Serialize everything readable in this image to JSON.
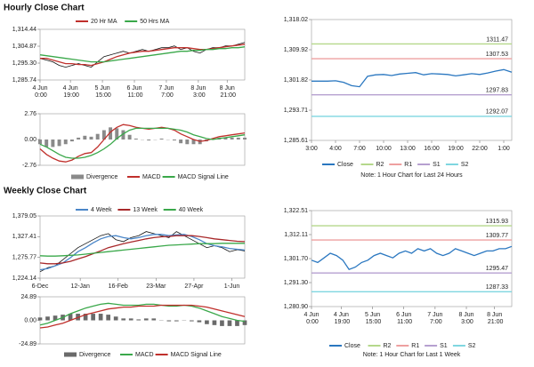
{
  "headings": [
    "Hourly Close Chart",
    "Weekly Close Chart"
  ],
  "chart_data": [
    {
      "type": "line",
      "ylim": [
        1285.74,
        1314.44
      ],
      "yticks": [
        {
          "value": 1314.44,
          "label": "1,314.44"
        },
        {
          "value": 1304.87,
          "label": "1,304.87"
        },
        {
          "value": 1295.3,
          "label": "1,295.30"
        },
        {
          "value": 1285.74,
          "label": "1,285.74"
        }
      ],
      "xlim": [
        0,
        32
      ],
      "xticks": [
        {
          "value": 0,
          "label": "4 Jun 0:00"
        },
        {
          "value": 4.75,
          "label": "4 Jun 19:00"
        },
        {
          "value": 9.75,
          "label": "5 Jun 15:00"
        },
        {
          "value": 14.75,
          "label": "6 Jun 11:00"
        },
        {
          "value": 19.75,
          "label": "7 Jun 7:00"
        },
        {
          "value": 24.75,
          "label": "8 Jun 3:00"
        },
        {
          "value": 29.25,
          "label": "8 Jun 21:00"
        }
      ],
      "series": [
        {
          "color": "#111111",
          "values": [
            1298,
            1297,
            1296,
            1294,
            1293,
            1294,
            1295,
            1294,
            1293,
            1296,
            1299,
            1300,
            1301,
            1302,
            1301,
            1302,
            1303,
            1302,
            1303,
            1304,
            1304,
            1305,
            1303,
            1304,
            1302,
            1301,
            1303,
            1304,
            1304,
            1305,
            1305,
            1306,
            1307
          ]
        },
        {
          "name": "20 Hr MA",
          "color": "#c0302c",
          "values": [
            1298,
            1298,
            1297,
            1296,
            1295,
            1295,
            1294.5,
            1294.5,
            1294,
            1295,
            1296,
            1297.5,
            1299,
            1300,
            1301,
            1301.5,
            1302,
            1302,
            1302.5,
            1303,
            1303.5,
            1304,
            1304,
            1304,
            1303.5,
            1303,
            1303,
            1303.5,
            1304,
            1304.5,
            1305,
            1305.5,
            1306
          ]
        },
        {
          "name": "50 Hrs MA",
          "color": "#3aa84a",
          "values": [
            1300,
            1299.5,
            1299,
            1298.5,
            1298,
            1297.5,
            1297,
            1296.5,
            1296,
            1296,
            1296,
            1296.5,
            1297,
            1297.5,
            1298,
            1298.5,
            1299,
            1299.5,
            1300,
            1300.5,
            1301,
            1301.5,
            1302,
            1302,
            1302.5,
            1302.5,
            1303,
            1303,
            1303.5,
            1303.5,
            1304,
            1304,
            1304.5
          ]
        }
      ]
    },
    {
      "type": "macd",
      "ylim": [
        -2.76,
        2.76
      ],
      "yticks": [
        2.76,
        {
          "value": 0,
          "label": "0.00"
        },
        -2.76
      ],
      "xlim": [
        0,
        32
      ],
      "series": [
        {
          "name": "Divergence",
          "type": "bar",
          "color": "#8a8a8a",
          "values": [
            -0.5,
            -0.8,
            -0.8,
            -0.7,
            -0.5,
            -0.2,
            0.2,
            0.4,
            0.3,
            0.6,
            1.0,
            1.3,
            1.2,
            1.0,
            0.5,
            0.1,
            0.0,
            -0.1,
            0.0,
            0.1,
            0.0,
            -0.1,
            -0.4,
            -0.5,
            -0.5,
            -0.5,
            -0.2,
            0.1,
            0.2,
            0.2,
            0.2,
            0.2,
            0.2
          ]
        },
        {
          "name": "MACD",
          "color": "#c0302c",
          "values": [
            -1.0,
            -1.6,
            -2.0,
            -2.3,
            -2.4,
            -2.2,
            -1.8,
            -1.5,
            -1.4,
            -0.8,
            0.0,
            0.8,
            1.3,
            1.6,
            1.5,
            1.3,
            1.2,
            1.1,
            1.2,
            1.3,
            1.2,
            1.0,
            0.6,
            0.3,
            0.0,
            -0.2,
            -0.1,
            0.1,
            0.3,
            0.4,
            0.5,
            0.6,
            0.7
          ]
        },
        {
          "name": "MACD Signal Line",
          "color": "#3aa84a",
          "values": [
            -0.5,
            -0.8,
            -1.2,
            -1.6,
            -1.9,
            -2.0,
            -2.0,
            -1.9,
            -1.7,
            -1.4,
            -1.0,
            -0.5,
            0.1,
            0.6,
            1.0,
            1.2,
            1.2,
            1.2,
            1.2,
            1.2,
            1.2,
            1.1,
            1.0,
            0.8,
            0.5,
            0.3,
            0.1,
            0.0,
            0.1,
            0.2,
            0.3,
            0.4,
            0.5
          ]
        }
      ]
    },
    {
      "type": "pivot",
      "note": "Note: 1 Hour Chart for Last 24 Hours",
      "ylim": [
        1285.61,
        1318.02
      ],
      "yticks": [
        {
          "value": 1318.02,
          "label": "1,318.02"
        },
        {
          "value": 1309.92,
          "label": "1,309.92"
        },
        {
          "value": 1301.82,
          "label": "1,301.82"
        },
        {
          "value": 1293.71,
          "label": "1,293.71"
        },
        {
          "value": 1285.61,
          "label": "1,285.61"
        }
      ],
      "xlim": [
        0,
        25
      ],
      "xticks": [
        {
          "value": 0,
          "label": "3:00"
        },
        {
          "value": 3,
          "label": "4:00"
        },
        {
          "value": 6,
          "label": "7:00"
        },
        {
          "value": 9,
          "label": "10:00"
        },
        {
          "value": 12,
          "label": "13:00"
        },
        {
          "value": 15,
          "label": "16:00"
        },
        {
          "value": 18,
          "label": "19:00"
        },
        {
          "value": 21,
          "label": "22:00"
        },
        {
          "value": 24,
          "label": "1:00"
        }
      ],
      "series": [
        {
          "name": "Close",
          "color": "#2a77c0",
          "values": [
            1301.5,
            1301.5,
            1301.5,
            1301.6,
            1301.2,
            1300.3,
            1300,
            1302.8,
            1303.2,
            1303.3,
            1303.0,
            1303.4,
            1303.6,
            1303.8,
            1303.2,
            1303.5,
            1303.4,
            1303.3,
            1302.9,
            1303.2,
            1303.5,
            1303.3,
            1303.7,
            1304.2,
            1304.6,
            1303.9
          ]
        }
      ],
      "levels": [
        {
          "name": "R2",
          "color": "#b5d88b",
          "value": 1311.47
        },
        {
          "name": "R1",
          "color": "#eea0a0",
          "value": 1307.53
        },
        {
          "name": "S1",
          "color": "#b6a0d0",
          "value": 1297.83
        },
        {
          "name": "S2",
          "color": "#7fd6e0",
          "value": 1292.07
        }
      ]
    },
    {
      "type": "line",
      "ylim": [
        1224.14,
        1379.05
      ],
      "yticks": [
        {
          "value": 1379.05,
          "label": "1,379.05"
        },
        {
          "value": 1327.41,
          "label": "1,327.41"
        },
        {
          "value": 1275.77,
          "label": "1,275.77"
        },
        {
          "value": 1224.14,
          "label": "1,224.14"
        }
      ],
      "xlim": [
        0,
        27
      ],
      "xticks": [
        {
          "value": 0,
          "label": "6-Dec"
        },
        {
          "value": 5.3,
          "label": "12-Jan"
        },
        {
          "value": 10.3,
          "label": "16-Feb"
        },
        {
          "value": 15.3,
          "label": "23-Mar"
        },
        {
          "value": 20.3,
          "label": "27-Apr"
        },
        {
          "value": 25.3,
          "label": "1-Jun"
        }
      ],
      "series": [
        {
          "color": "#111111",
          "values": [
            1240,
            1250,
            1255,
            1270,
            1285,
            1300,
            1310,
            1320,
            1330,
            1335,
            1320,
            1315,
            1325,
            1330,
            1340,
            1335,
            1330,
            1325,
            1340,
            1330,
            1320,
            1310,
            1300,
            1305,
            1300,
            1290,
            1295,
            1292
          ]
        },
        {
          "name": "4 Week",
          "color": "#4a86c8",
          "values": [
            1245,
            1248,
            1255,
            1262,
            1275,
            1290,
            1300,
            1312,
            1322,
            1328,
            1330,
            1325,
            1322,
            1325,
            1330,
            1333,
            1333,
            1330,
            1332,
            1333,
            1328,
            1320,
            1310,
            1305,
            1302,
            1298,
            1296,
            1294
          ]
        },
        {
          "name": "13 Week",
          "color": "#a8282a",
          "values": [
            1262,
            1260,
            1260,
            1262,
            1266,
            1272,
            1278,
            1285,
            1292,
            1300,
            1305,
            1310,
            1314,
            1318,
            1322,
            1325,
            1327,
            1328,
            1330,
            1330,
            1330,
            1328,
            1325,
            1322,
            1320,
            1318,
            1316,
            1315
          ]
        },
        {
          "name": "40 Week",
          "color": "#3aa84a",
          "values": [
            1280,
            1279,
            1279,
            1280,
            1281,
            1282,
            1284,
            1286,
            1288,
            1290,
            1292,
            1294,
            1296,
            1298,
            1300,
            1302,
            1304,
            1306,
            1307,
            1308,
            1309,
            1310,
            1310,
            1310,
            1311,
            1311,
            1311,
            1311
          ]
        }
      ]
    },
    {
      "type": "macd",
      "ylim": [
        -24.89,
        24.89
      ],
      "yticks": [
        24.89,
        {
          "value": 0,
          "label": "0.00"
        },
        -24.89
      ],
      "xlim": [
        0,
        27
      ],
      "series": [
        {
          "name": "Divergence",
          "type": "bar",
          "color": "#6a6a6a",
          "values": [
            3,
            4,
            5,
            6,
            7,
            7,
            7,
            7,
            7,
            6,
            4,
            2,
            2,
            1,
            2,
            2,
            0,
            -1,
            -1,
            0,
            -1,
            -2,
            -4,
            -5,
            -6,
            -6,
            -6,
            -5
          ]
        },
        {
          "name": "MACD",
          "color": "#3aa84a",
          "values": [
            -5,
            -3,
            0,
            3,
            7,
            10,
            13,
            15,
            17,
            18,
            17,
            16,
            16,
            16,
            17,
            17,
            16,
            15,
            15,
            16,
            15,
            13,
            10,
            7,
            4,
            2,
            0,
            -1
          ]
        },
        {
          "name": "MACD Signal Line",
          "color": "#c0302c",
          "values": [
            -8,
            -7,
            -5,
            -3,
            0,
            3,
            6,
            8,
            10,
            12,
            13,
            14,
            14,
            15,
            15,
            15,
            16,
            16,
            16,
            16,
            16,
            15,
            14,
            12,
            10,
            8,
            6,
            4
          ]
        }
      ]
    },
    {
      "type": "pivot",
      "note": "Note: 1 Hour Chart for Last 1 Week",
      "ylim": [
        1280.9,
        1322.51
      ],
      "yticks": [
        {
          "value": 1322.51,
          "label": "1,322.51"
        },
        {
          "value": 1312.11,
          "label": "1,312.11"
        },
        {
          "value": 1301.7,
          "label": "1,301.70"
        },
        {
          "value": 1291.3,
          "label": "1,291.30"
        },
        {
          "value": 1280.9,
          "label": "1,280.90"
        }
      ],
      "xlim": [
        0,
        32
      ],
      "xticks": [
        {
          "value": 0,
          "label": "4 Jun 0:00"
        },
        {
          "value": 4.75,
          "label": "4 Jun 19:00"
        },
        {
          "value": 9.75,
          "label": "5 Jun 15:00"
        },
        {
          "value": 14.75,
          "label": "6 Jun 11:00"
        },
        {
          "value": 19.75,
          "label": "7 Jun 7:00"
        },
        {
          "value": 24.75,
          "label": "8 Jun 3:00"
        },
        {
          "value": 29.25,
          "label": "8 Jun 21:00"
        }
      ],
      "series": [
        {
          "name": "Close",
          "color": "#2a77c0",
          "values": [
            1301,
            1300,
            1302,
            1304,
            1303,
            1301,
            1297,
            1298,
            1300,
            1301,
            1303,
            1304,
            1303,
            1302,
            1304,
            1305,
            1304,
            1306,
            1305,
            1306,
            1304,
            1303,
            1304,
            1306,
            1305,
            1304,
            1303,
            1304,
            1305,
            1305,
            1306,
            1306,
            1307
          ]
        }
      ],
      "levels": [
        {
          "name": "R2",
          "color": "#b5d88b",
          "value": 1315.93
        },
        {
          "name": "R1",
          "color": "#eea0a0",
          "value": 1309.77
        },
        {
          "name": "S1",
          "color": "#b6a0d0",
          "value": 1295.47
        },
        {
          "name": "S2",
          "color": "#7fd6e0",
          "value": 1287.33
        }
      ]
    }
  ]
}
